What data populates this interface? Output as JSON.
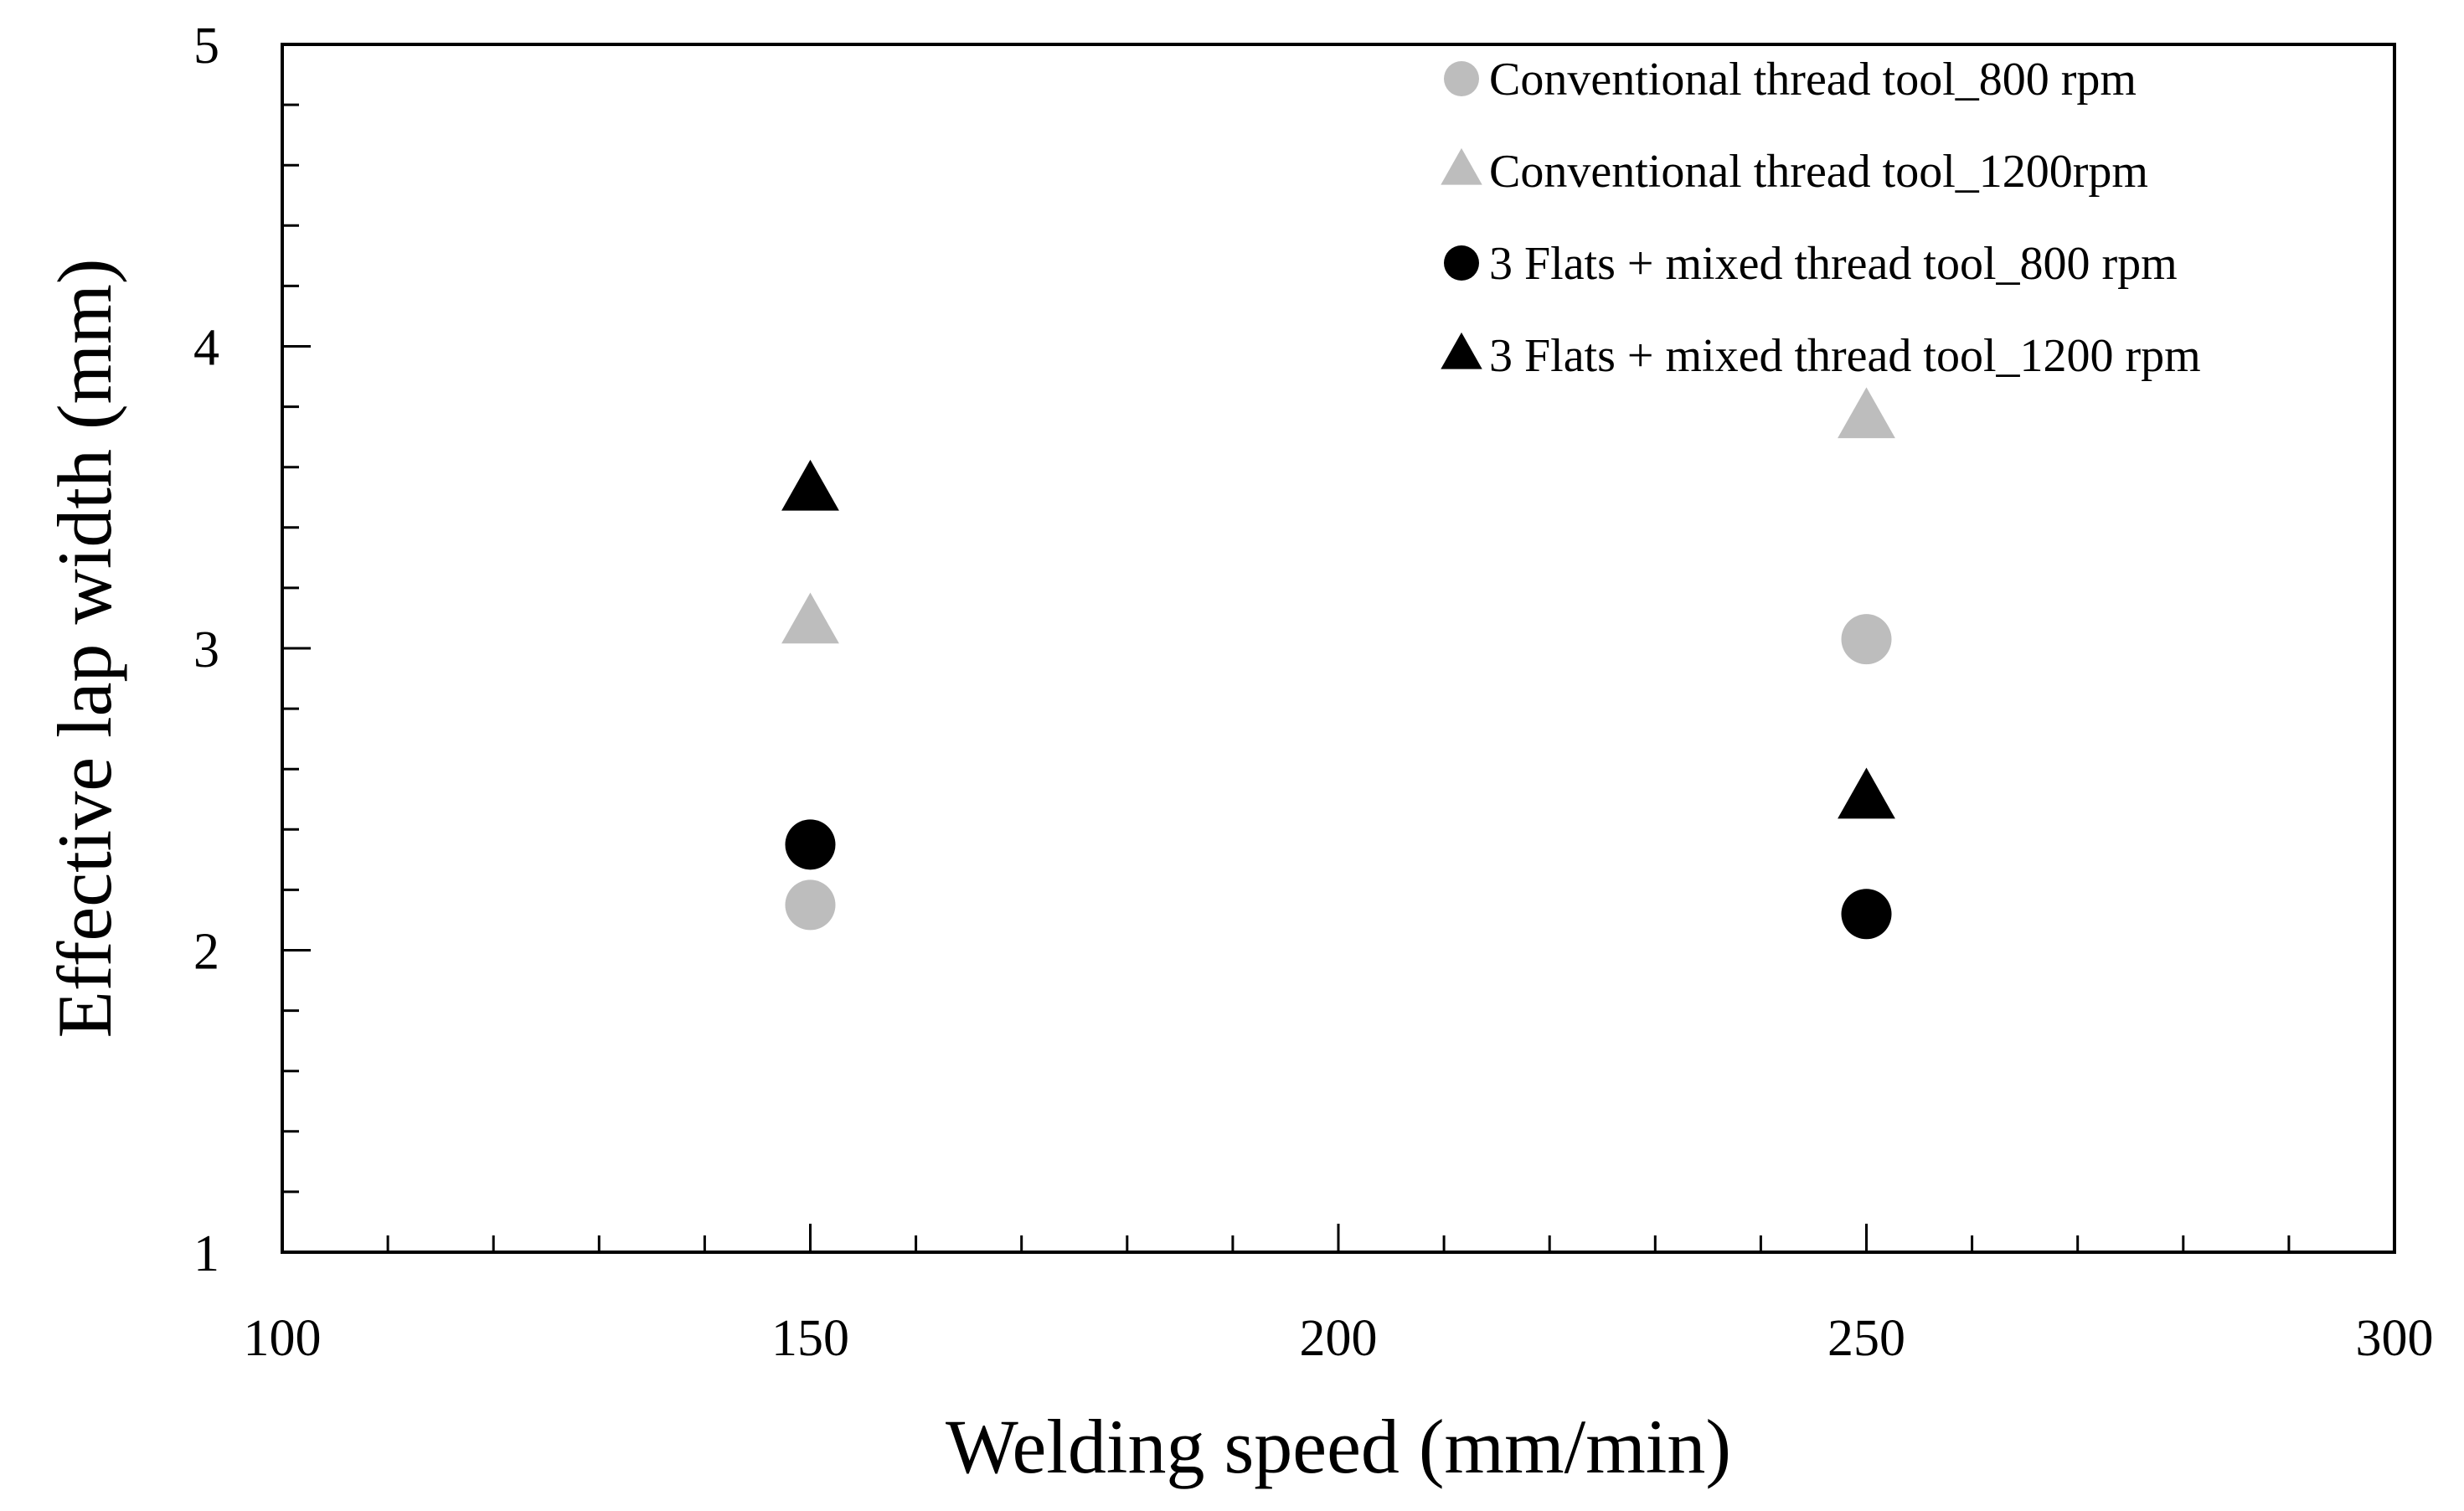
{
  "chart_data": {
    "type": "scatter",
    "title": "",
    "xlabel": "Welding speed (mm/min)",
    "ylabel": "Effective lap width (mm)",
    "xlim": [
      100,
      300
    ],
    "ylim": [
      1,
      5
    ],
    "x_ticks": [
      "100",
      "150",
      "200",
      "250",
      "300"
    ],
    "y_ticks": [
      "1",
      "2",
      "3",
      "4",
      "5"
    ],
    "grid": false,
    "legend_position": "top-right",
    "series": [
      {
        "name": "Conventional thread tool_800 rpm",
        "marker": "circle",
        "color": "#bdbdbd",
        "x": [
          150,
          250
        ],
        "y": [
          2.15,
          3.03
        ]
      },
      {
        "name": "Conventional thread tool_1200rpm",
        "marker": "triangle",
        "color": "#bdbdbd",
        "x": [
          150,
          250
        ],
        "y": [
          3.08,
          3.76
        ]
      },
      {
        "name": "3 Flats + mixed thread tool_800 rpm",
        "marker": "circle",
        "color": "#000000",
        "x": [
          150,
          250
        ],
        "y": [
          2.35,
          2.12
        ]
      },
      {
        "name": "3 Flats + mixed thread tool_1200 rpm",
        "marker": "triangle",
        "color": "#000000",
        "x": [
          150,
          250
        ],
        "y": [
          3.52,
          2.5
        ]
      }
    ]
  }
}
